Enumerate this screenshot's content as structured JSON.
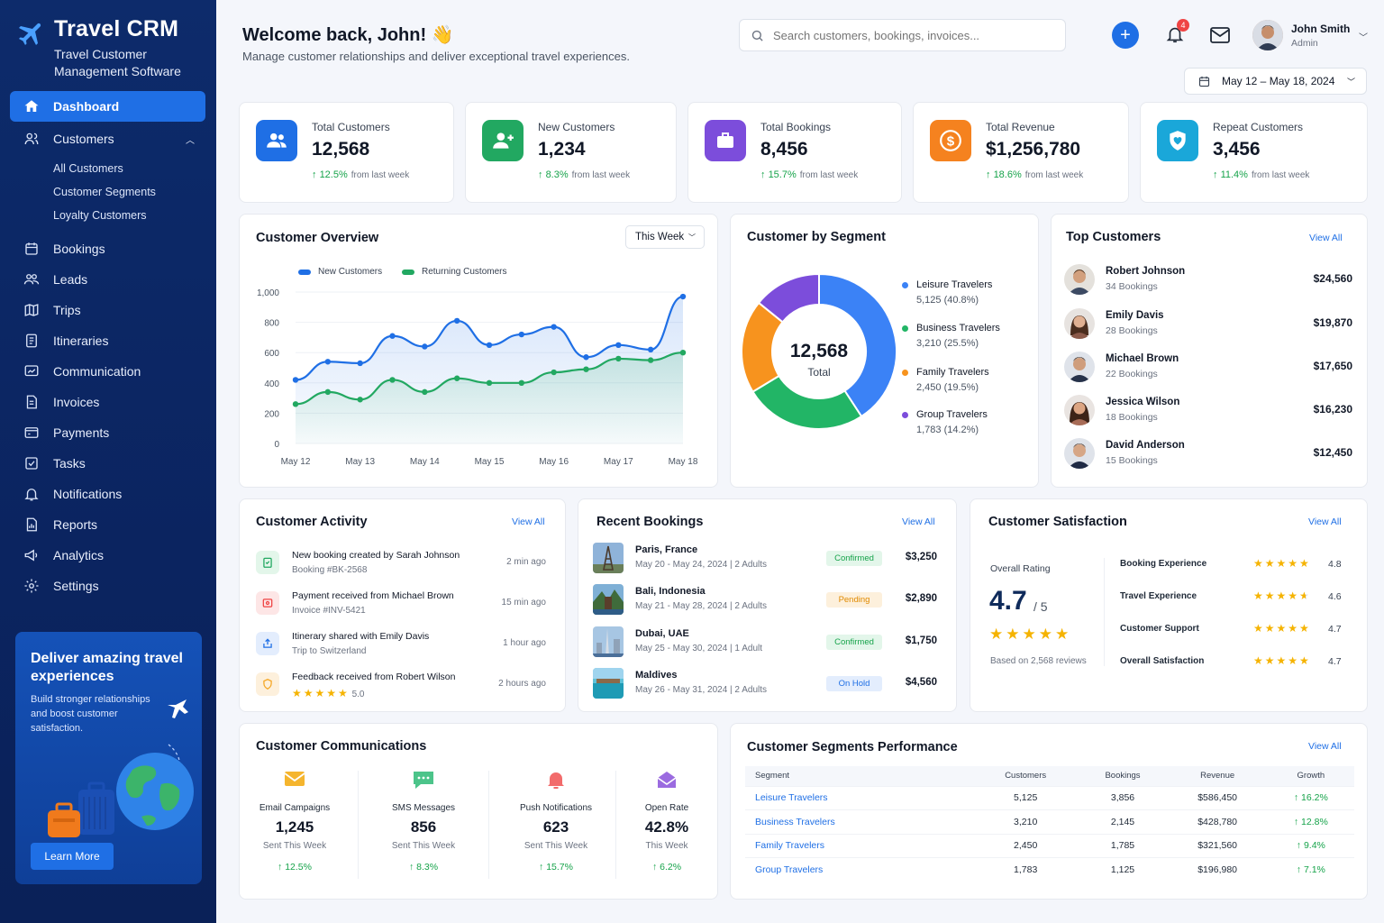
{
  "brand": {
    "name": "Travel CRM",
    "subtitle_line1": "Travel Customer",
    "subtitle_line2": "Management Software"
  },
  "nav": {
    "dashboard": "Dashboard",
    "customers": "Customers",
    "customers_sub": [
      "All Customers",
      "Customer Segments",
      "Loyalty Customers"
    ],
    "bookings": "Bookings",
    "leads": "Leads",
    "trips": "Trips",
    "itineraries": "Itineraries",
    "communication": "Communication",
    "invoices": "Invoices",
    "payments": "Payments",
    "tasks": "Tasks",
    "notifications": "Notifications",
    "reports": "Reports",
    "analytics": "Analytics",
    "settings": "Settings"
  },
  "promo": {
    "title": "Deliver amazing travel experiences",
    "text": "Build stronger relationships and boost customer satisfaction.",
    "button": "Learn More"
  },
  "header": {
    "welcome": "Welcome back, John! 👋",
    "subtitle": "Manage customer relationships and deliver exceptional travel experiences.",
    "search_placeholder": "Search customers, bookings, invoices...",
    "notification_count": "4",
    "user_name": "John Smith",
    "user_role": "Admin",
    "date_range": "May 12 – May 18, 2024"
  },
  "kpis": [
    {
      "label": "Total Customers",
      "value": "12,568",
      "trend": "12.5%",
      "trend_note": "from last week",
      "color": "#1f6fe5"
    },
    {
      "label": "New Customers",
      "value": "1,234",
      "trend": "8.3%",
      "trend_note": "from last week",
      "color": "#22a861"
    },
    {
      "label": "Total Bookings",
      "value": "8,456",
      "trend": "15.7%",
      "trend_note": "from last week",
      "color": "#7c4ddb"
    },
    {
      "label": "Total Revenue",
      "value": "$1,256,780",
      "trend": "18.6%",
      "trend_note": "from last week",
      "color": "#f5821f"
    },
    {
      "label": "Repeat Customers",
      "value": "3,456",
      "trend": "11.4%",
      "trend_note": "from last week",
      "color": "#1aa7d9"
    }
  ],
  "overview": {
    "title": "Customer Overview",
    "range": "This Week"
  },
  "chart_data": [
    {
      "type": "line",
      "x": [
        "May 12",
        "May 13",
        "May 14",
        "May 15",
        "May 16",
        "May 17",
        "May 18"
      ],
      "ylim": [
        0,
        1000
      ],
      "yticks": [
        "0",
        "200",
        "400",
        "600",
        "800",
        "1,000"
      ],
      "series": [
        {
          "name": "New Customers",
          "color": "#1f6fe5",
          "x": [
            0,
            0.5,
            1,
            1.5,
            2,
            2.5,
            3,
            3.5,
            4,
            4.5,
            5,
            5.5,
            6
          ],
          "values": [
            420,
            540,
            530,
            710,
            640,
            810,
            650,
            720,
            770,
            570,
            650,
            620,
            970
          ]
        },
        {
          "name": "Returning Customers",
          "color": "#22a861",
          "x": [
            0,
            0.5,
            1,
            1.5,
            2,
            2.5,
            3,
            3.5,
            4,
            4.5,
            5,
            5.5,
            6
          ],
          "values": [
            260,
            340,
            290,
            420,
            340,
            430,
            400,
            400,
            470,
            490,
            560,
            550,
            600
          ]
        }
      ]
    },
    {
      "type": "pie",
      "title": "Customer by Segment",
      "center_value": "12,568",
      "center_label": "Total",
      "slices": [
        {
          "name": "Leisure Travelers",
          "value": 5125,
          "display": "5,125 (40.8%)",
          "color": "#3b82f6"
        },
        {
          "name": "Business Travelers",
          "value": 3210,
          "display": "3,210 (25.5%)",
          "color": "#22b566"
        },
        {
          "name": "Family Travelers",
          "value": 2450,
          "display": "2,450 (19.5%)",
          "color": "#f7931e"
        },
        {
          "name": "Group Travelers",
          "value": 1783,
          "display": "1,783 (14.2%)",
          "color": "#7c4ddb"
        }
      ]
    }
  ],
  "top_customers": {
    "title": "Top Customers",
    "view_all": "View All",
    "items": [
      {
        "name": "Robert Johnson",
        "bookings": "34 Bookings",
        "amount": "$24,560"
      },
      {
        "name": "Emily Davis",
        "bookings": "28 Bookings",
        "amount": "$19,870"
      },
      {
        "name": "Michael Brown",
        "bookings": "22 Bookings",
        "amount": "$17,650"
      },
      {
        "name": "Jessica Wilson",
        "bookings": "18 Bookings",
        "amount": "$16,230"
      },
      {
        "name": "David Anderson",
        "bookings": "15 Bookings",
        "amount": "$12,450"
      }
    ]
  },
  "activity": {
    "title": "Customer Activity",
    "view_all": "View All",
    "items": [
      {
        "title": "New booking created by Sarah Johnson",
        "sub": "Booking #BK-2568",
        "time": "2 min ago",
        "color": "#22a861"
      },
      {
        "title": "Payment received from Michael Brown",
        "sub": "Invoice #INV-5421",
        "time": "15 min ago",
        "color": "#ef4444"
      },
      {
        "title": "Itinerary shared with Emily Davis",
        "sub": "Trip to Switzerland",
        "time": "1 hour ago",
        "color": "#1f6fe5"
      },
      {
        "title": "Feedback received from Robert Wilson",
        "sub": "5.0",
        "time": "2 hours ago",
        "color": "#f5a623"
      }
    ]
  },
  "bookings": {
    "title": "Recent Bookings",
    "view_all": "View All",
    "items": [
      {
        "dest": "Paris, France",
        "dates": "May 20 - May 24, 2024  |  2 Adults",
        "status": "Confirmed",
        "status_color": "#16a34a",
        "status_bg": "#e3f6ea",
        "price": "$3,250"
      },
      {
        "dest": "Bali, Indonesia",
        "dates": "May 21 - May 28, 2024  |  2 Adults",
        "status": "Pending",
        "status_color": "#e08a00",
        "status_bg": "#fdf0dc",
        "price": "$2,890"
      },
      {
        "dest": "Dubai, UAE",
        "dates": "May 25 - May 30, 2024  |  1 Adult",
        "status": "Confirmed",
        "status_color": "#16a34a",
        "status_bg": "#e3f6ea",
        "price": "$1,750"
      },
      {
        "dest": "Maldives",
        "dates": "May 26 - May 31, 2024  |  2 Adults",
        "status": "On Hold",
        "status_color": "#1f6fe5",
        "status_bg": "#e3edfd",
        "price": "$4,560"
      }
    ]
  },
  "satisfaction": {
    "title": "Customer Satisfaction",
    "view_all": "View All",
    "overall_label": "Overall Rating",
    "overall_value": "4.7",
    "overall_max": "/ 5",
    "reviews": "Based on 2,568 reviews",
    "items": [
      {
        "label": "Booking Experience",
        "score": "4.8",
        "rating": 4.8
      },
      {
        "label": "Travel Experience",
        "score": "4.6",
        "rating": 4.6
      },
      {
        "label": "Customer Support",
        "score": "4.7",
        "rating": 4.7
      },
      {
        "label": "Overall Satisfaction",
        "score": "4.7",
        "rating": 4.7
      }
    ]
  },
  "communications": {
    "title": "Customer Communications",
    "items": [
      {
        "label": "Email Campaigns",
        "value": "1,245",
        "sub": "Sent This Week",
        "trend": "12.5%",
        "icon": "envelope-icon"
      },
      {
        "label": "SMS Messages",
        "value": "856",
        "sub": "Sent This Week",
        "trend": "8.3%",
        "icon": "chat-icon"
      },
      {
        "label": "Push Notifications",
        "value": "623",
        "sub": "Sent This Week",
        "trend": "15.7%",
        "icon": "bell-icon"
      },
      {
        "label": "Open Rate",
        "value": "42.8%",
        "sub": "This Week",
        "trend": "6.2%",
        "icon": "open-mail-icon"
      }
    ]
  },
  "performance": {
    "title": "Customer Segments Performance",
    "view_all": "View All",
    "columns": [
      "Segment",
      "Customers",
      "Bookings",
      "Revenue",
      "Growth"
    ],
    "rows": [
      [
        "Leisure Travelers",
        "5,125",
        "3,856",
        "$586,450",
        "16.2%"
      ],
      [
        "Business Travelers",
        "3,210",
        "2,145",
        "$428,780",
        "12.8%"
      ],
      [
        "Family Travelers",
        "2,450",
        "1,785",
        "$321,560",
        "9.4%"
      ],
      [
        "Group Travelers",
        "1,783",
        "1,125",
        "$196,980",
        "7.1%"
      ]
    ]
  }
}
